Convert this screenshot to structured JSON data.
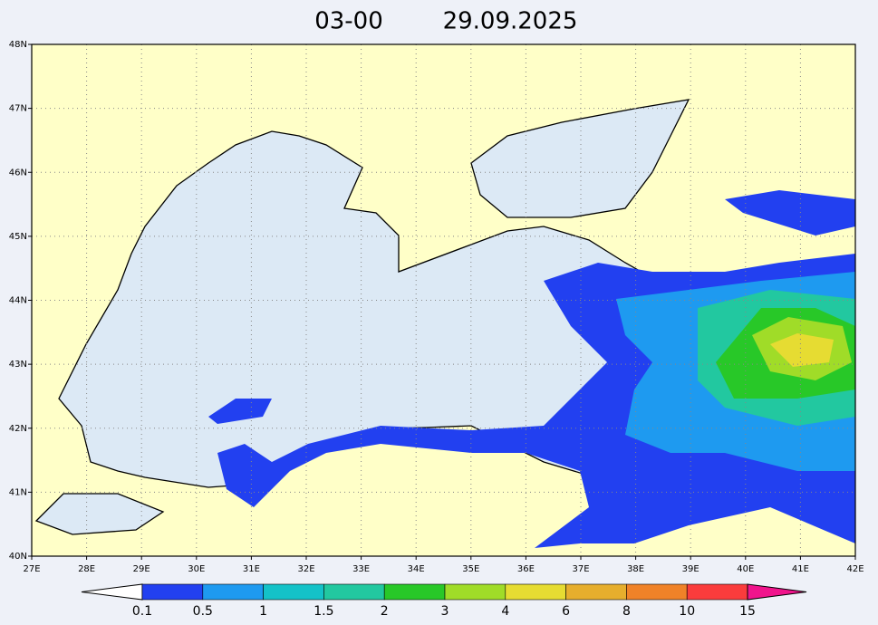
{
  "title": {
    "time": "03-00",
    "date": "29.09.2025"
  },
  "lat_labels": [
    "48N",
    "47N",
    "46N",
    "45N",
    "44N",
    "43N",
    "42N",
    "41N",
    "40N"
  ],
  "lon_labels": [
    "27E",
    "28E",
    "29E",
    "30E",
    "31E",
    "32E",
    "33E",
    "34E",
    "35E",
    "36E",
    "37E",
    "38E",
    "39E",
    "40E",
    "41E",
    "42E"
  ],
  "colorbar": {
    "labels": [
      "0.1",
      "0.5",
      "1",
      "1.5",
      "2",
      "3",
      "4",
      "6",
      "8",
      "10",
      "15"
    ],
    "colors": [
      "#2240f0",
      "#1e9af0",
      "#14c2c8",
      "#22c8a0",
      "#28c828",
      "#a0dc28",
      "#e6dc32",
      "#e6ae2d",
      "#f08228",
      "#fa3c3c"
    ],
    "under_color": "#ffffff",
    "over_color": "#f0148c"
  }
}
